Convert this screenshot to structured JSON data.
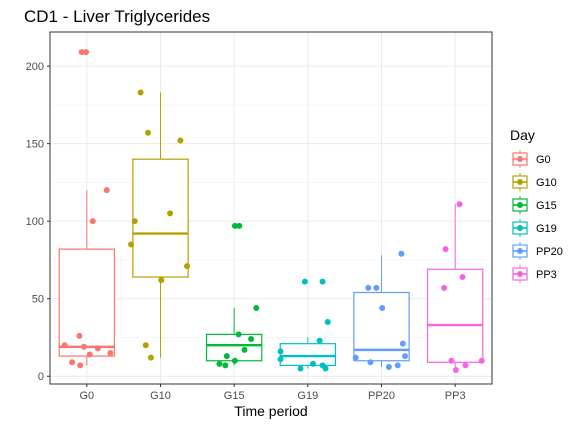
{
  "chart_data": {
    "type": "boxplot",
    "title": "CD1 - Liver Triglycerides",
    "xlabel": "Time period",
    "ylabel": "",
    "ylim": [
      -5,
      222
    ],
    "yticks": [
      0,
      50,
      100,
      150,
      200
    ],
    "grid": true,
    "legend": {
      "title": "Day",
      "position": "right"
    },
    "categories": [
      "G0",
      "G10",
      "G15",
      "G19",
      "PP20",
      "PP3"
    ],
    "series": [
      {
        "name": "G0",
        "color": "#F8766D",
        "box": {
          "whisker_low": 7,
          "q1": 13,
          "median": 19,
          "q3": 82,
          "whisker_high": 120
        },
        "points": [
          {
            "x": -0.07,
            "y": 209
          },
          {
            "x": -0.01,
            "y": 209
          },
          {
            "x": 0.27,
            "y": 120
          },
          {
            "x": 0.08,
            "y": 100
          },
          {
            "x": -0.1,
            "y": 26
          },
          {
            "x": -0.3,
            "y": 20
          },
          {
            "x": -0.04,
            "y": 19
          },
          {
            "x": 0.15,
            "y": 18
          },
          {
            "x": 0.32,
            "y": 15
          },
          {
            "x": 0.04,
            "y": 14
          },
          {
            "x": -0.2,
            "y": 9
          },
          {
            "x": -0.09,
            "y": 7
          }
        ]
      },
      {
        "name": "G10",
        "color": "#B79F00",
        "box": {
          "whisker_low": 12,
          "q1": 64,
          "median": 92,
          "q3": 140,
          "whisker_high": 183
        },
        "points": [
          {
            "x": -0.27,
            "y": 183
          },
          {
            "x": -0.17,
            "y": 157
          },
          {
            "x": 0.27,
            "y": 152
          },
          {
            "x": 0.13,
            "y": 105
          },
          {
            "x": -0.35,
            "y": 100
          },
          {
            "x": -0.4,
            "y": 85
          },
          {
            "x": 0.36,
            "y": 71
          },
          {
            "x": 0.01,
            "y": 62
          },
          {
            "x": -0.2,
            "y": 20
          },
          {
            "x": -0.13,
            "y": 12
          }
        ]
      },
      {
        "name": "G15",
        "color": "#00BA38",
        "box": {
          "whisker_low": 7,
          "q1": 10,
          "median": 20,
          "q3": 27,
          "whisker_high": 44
        },
        "points": [
          {
            "x": 0.01,
            "y": 97
          },
          {
            "x": 0.07,
            "y": 97
          },
          {
            "x": 0.3,
            "y": 44
          },
          {
            "x": 0.06,
            "y": 27
          },
          {
            "x": 0.23,
            "y": 24
          },
          {
            "x": 0.14,
            "y": 17
          },
          {
            "x": -0.1,
            "y": 13
          },
          {
            "x": 0.01,
            "y": 10
          },
          {
            "x": -0.2,
            "y": 8
          },
          {
            "x": -0.12,
            "y": 7
          }
        ]
      },
      {
        "name": "G19",
        "color": "#00BFC4",
        "box": {
          "whisker_low": 5,
          "q1": 7,
          "median": 13,
          "q3": 21,
          "whisker_high": 25
        },
        "points": [
          {
            "x": -0.04,
            "y": 61
          },
          {
            "x": 0.2,
            "y": 61
          },
          {
            "x": 0.27,
            "y": 35
          },
          {
            "x": 0.16,
            "y": 23
          },
          {
            "x": -0.37,
            "y": 16
          },
          {
            "x": -0.37,
            "y": 11
          },
          {
            "x": 0.07,
            "y": 8
          },
          {
            "x": 0.2,
            "y": 7
          },
          {
            "x": -0.1,
            "y": 5
          },
          {
            "x": 0.24,
            "y": 5
          }
        ]
      },
      {
        "name": "PP20",
        "color": "#619CFF",
        "box": {
          "whisker_low": 6,
          "q1": 10,
          "median": 17,
          "q3": 54,
          "whisker_high": 78
        },
        "points": [
          {
            "x": 0.27,
            "y": 79
          },
          {
            "x": -0.18,
            "y": 57
          },
          {
            "x": -0.07,
            "y": 57
          },
          {
            "x": 0.01,
            "y": 44
          },
          {
            "x": 0.29,
            "y": 21
          },
          {
            "x": 0.32,
            "y": 13
          },
          {
            "x": -0.35,
            "y": 12
          },
          {
            "x": -0.15,
            "y": 9
          },
          {
            "x": 0.22,
            "y": 7
          },
          {
            "x": 0.1,
            "y": 6
          }
        ]
      },
      {
        "name": "PP3",
        "color": "#F564E3",
        "box": {
          "whisker_low": 4,
          "q1": 9,
          "median": 33,
          "q3": 69,
          "whisker_high": 111
        },
        "points": [
          {
            "x": 0.06,
            "y": 111
          },
          {
            "x": -0.13,
            "y": 82
          },
          {
            "x": 0.1,
            "y": 64
          },
          {
            "x": -0.15,
            "y": 57
          },
          {
            "x": 0.36,
            "y": 10
          },
          {
            "x": -0.05,
            "y": 10
          },
          {
            "x": 0.14,
            "y": 7
          },
          {
            "x": 0.01,
            "y": 4
          }
        ]
      }
    ]
  }
}
